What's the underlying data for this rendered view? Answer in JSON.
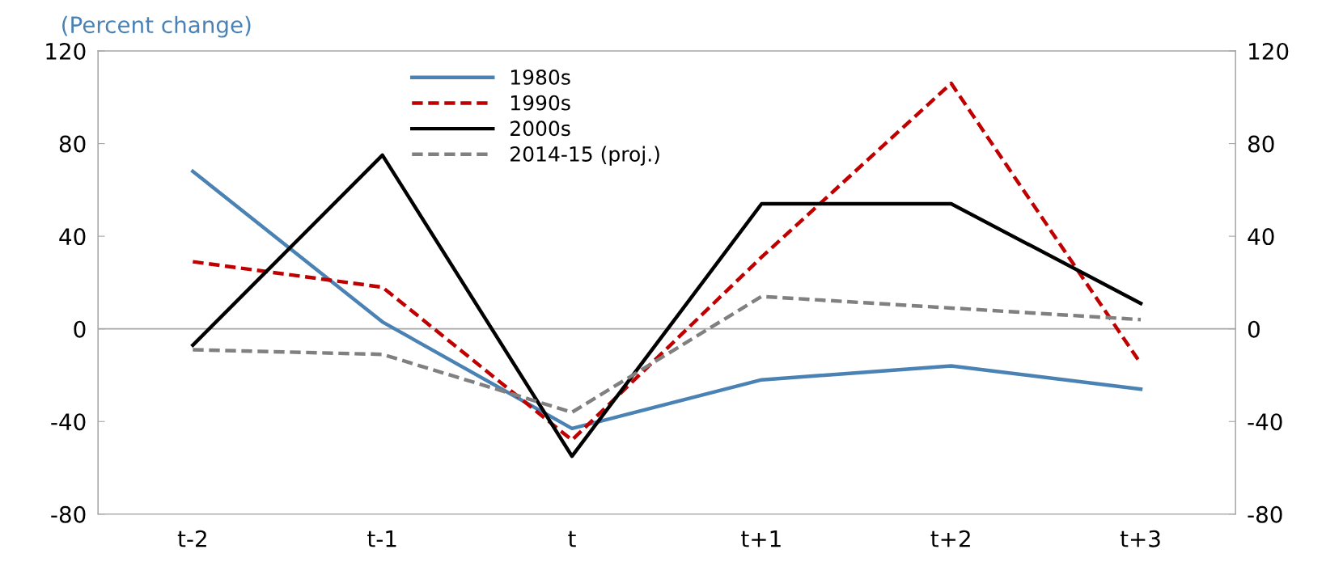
{
  "chart_data": {
    "type": "line",
    "subtitle": "(Percent change)",
    "categories": [
      "t-2",
      "t-1",
      "t",
      "t+1",
      "t+2",
      "t+3"
    ],
    "series": [
      {
        "name": "1980s",
        "color": "#4a82b4",
        "line_style": "solid",
        "values": [
          68,
          3,
          -43,
          -22,
          -16,
          -26
        ]
      },
      {
        "name": "1990s",
        "color": "#c00000",
        "line_style": "dashed",
        "values": [
          29,
          18,
          -48,
          31,
          106,
          -15
        ]
      },
      {
        "name": "2000s",
        "color": "#000000",
        "line_style": "solid",
        "values": [
          -7,
          75,
          -55,
          54,
          54,
          11
        ]
      },
      {
        "name": "2014-15 (proj.)",
        "color": "#808080",
        "line_style": "dashed",
        "values": [
          -9,
          -11,
          -36,
          14,
          9,
          4
        ]
      }
    ],
    "ylim": [
      -80,
      120
    ],
    "yticks": [
      -80,
      -40,
      0,
      40,
      80,
      120
    ],
    "y2lim": [
      -80,
      120
    ],
    "y2ticks": [
      -80,
      -40,
      0,
      40,
      80,
      120
    ],
    "ref_lines": [
      {
        "axis": "y",
        "value": 0,
        "color": "#a6a6a6",
        "line_style": "solid"
      }
    ],
    "grid": false,
    "legend": "top",
    "marker": "none"
  }
}
